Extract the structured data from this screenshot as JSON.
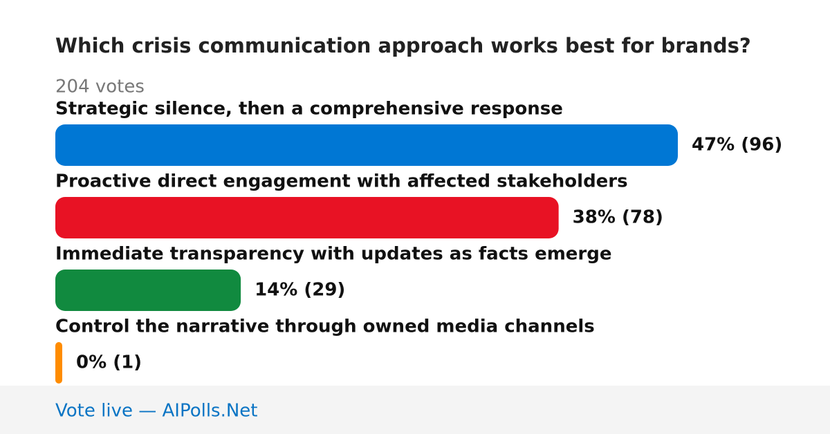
{
  "chart_data": {
    "type": "bar",
    "orientation": "horizontal",
    "title": "Which crisis communication approach works best for brands?",
    "subtitle": "204 votes",
    "categories": [
      "Strategic silence, then a comprehensive response",
      "Proactive direct engagement with affected stakeholders",
      "Immediate transparency with updates as facts emerge",
      "Control the narrative through owned media channels"
    ],
    "values": [
      47,
      38,
      14,
      0
    ],
    "value_labels": [
      "47% (96)",
      "38% (78)",
      "14% (29)",
      "0% (1)"
    ],
    "colors": [
      "#0077d4",
      "#e81224",
      "#118a3f",
      "#ff8c00"
    ],
    "footer": "Vote live — AIPolls.Net"
  }
}
